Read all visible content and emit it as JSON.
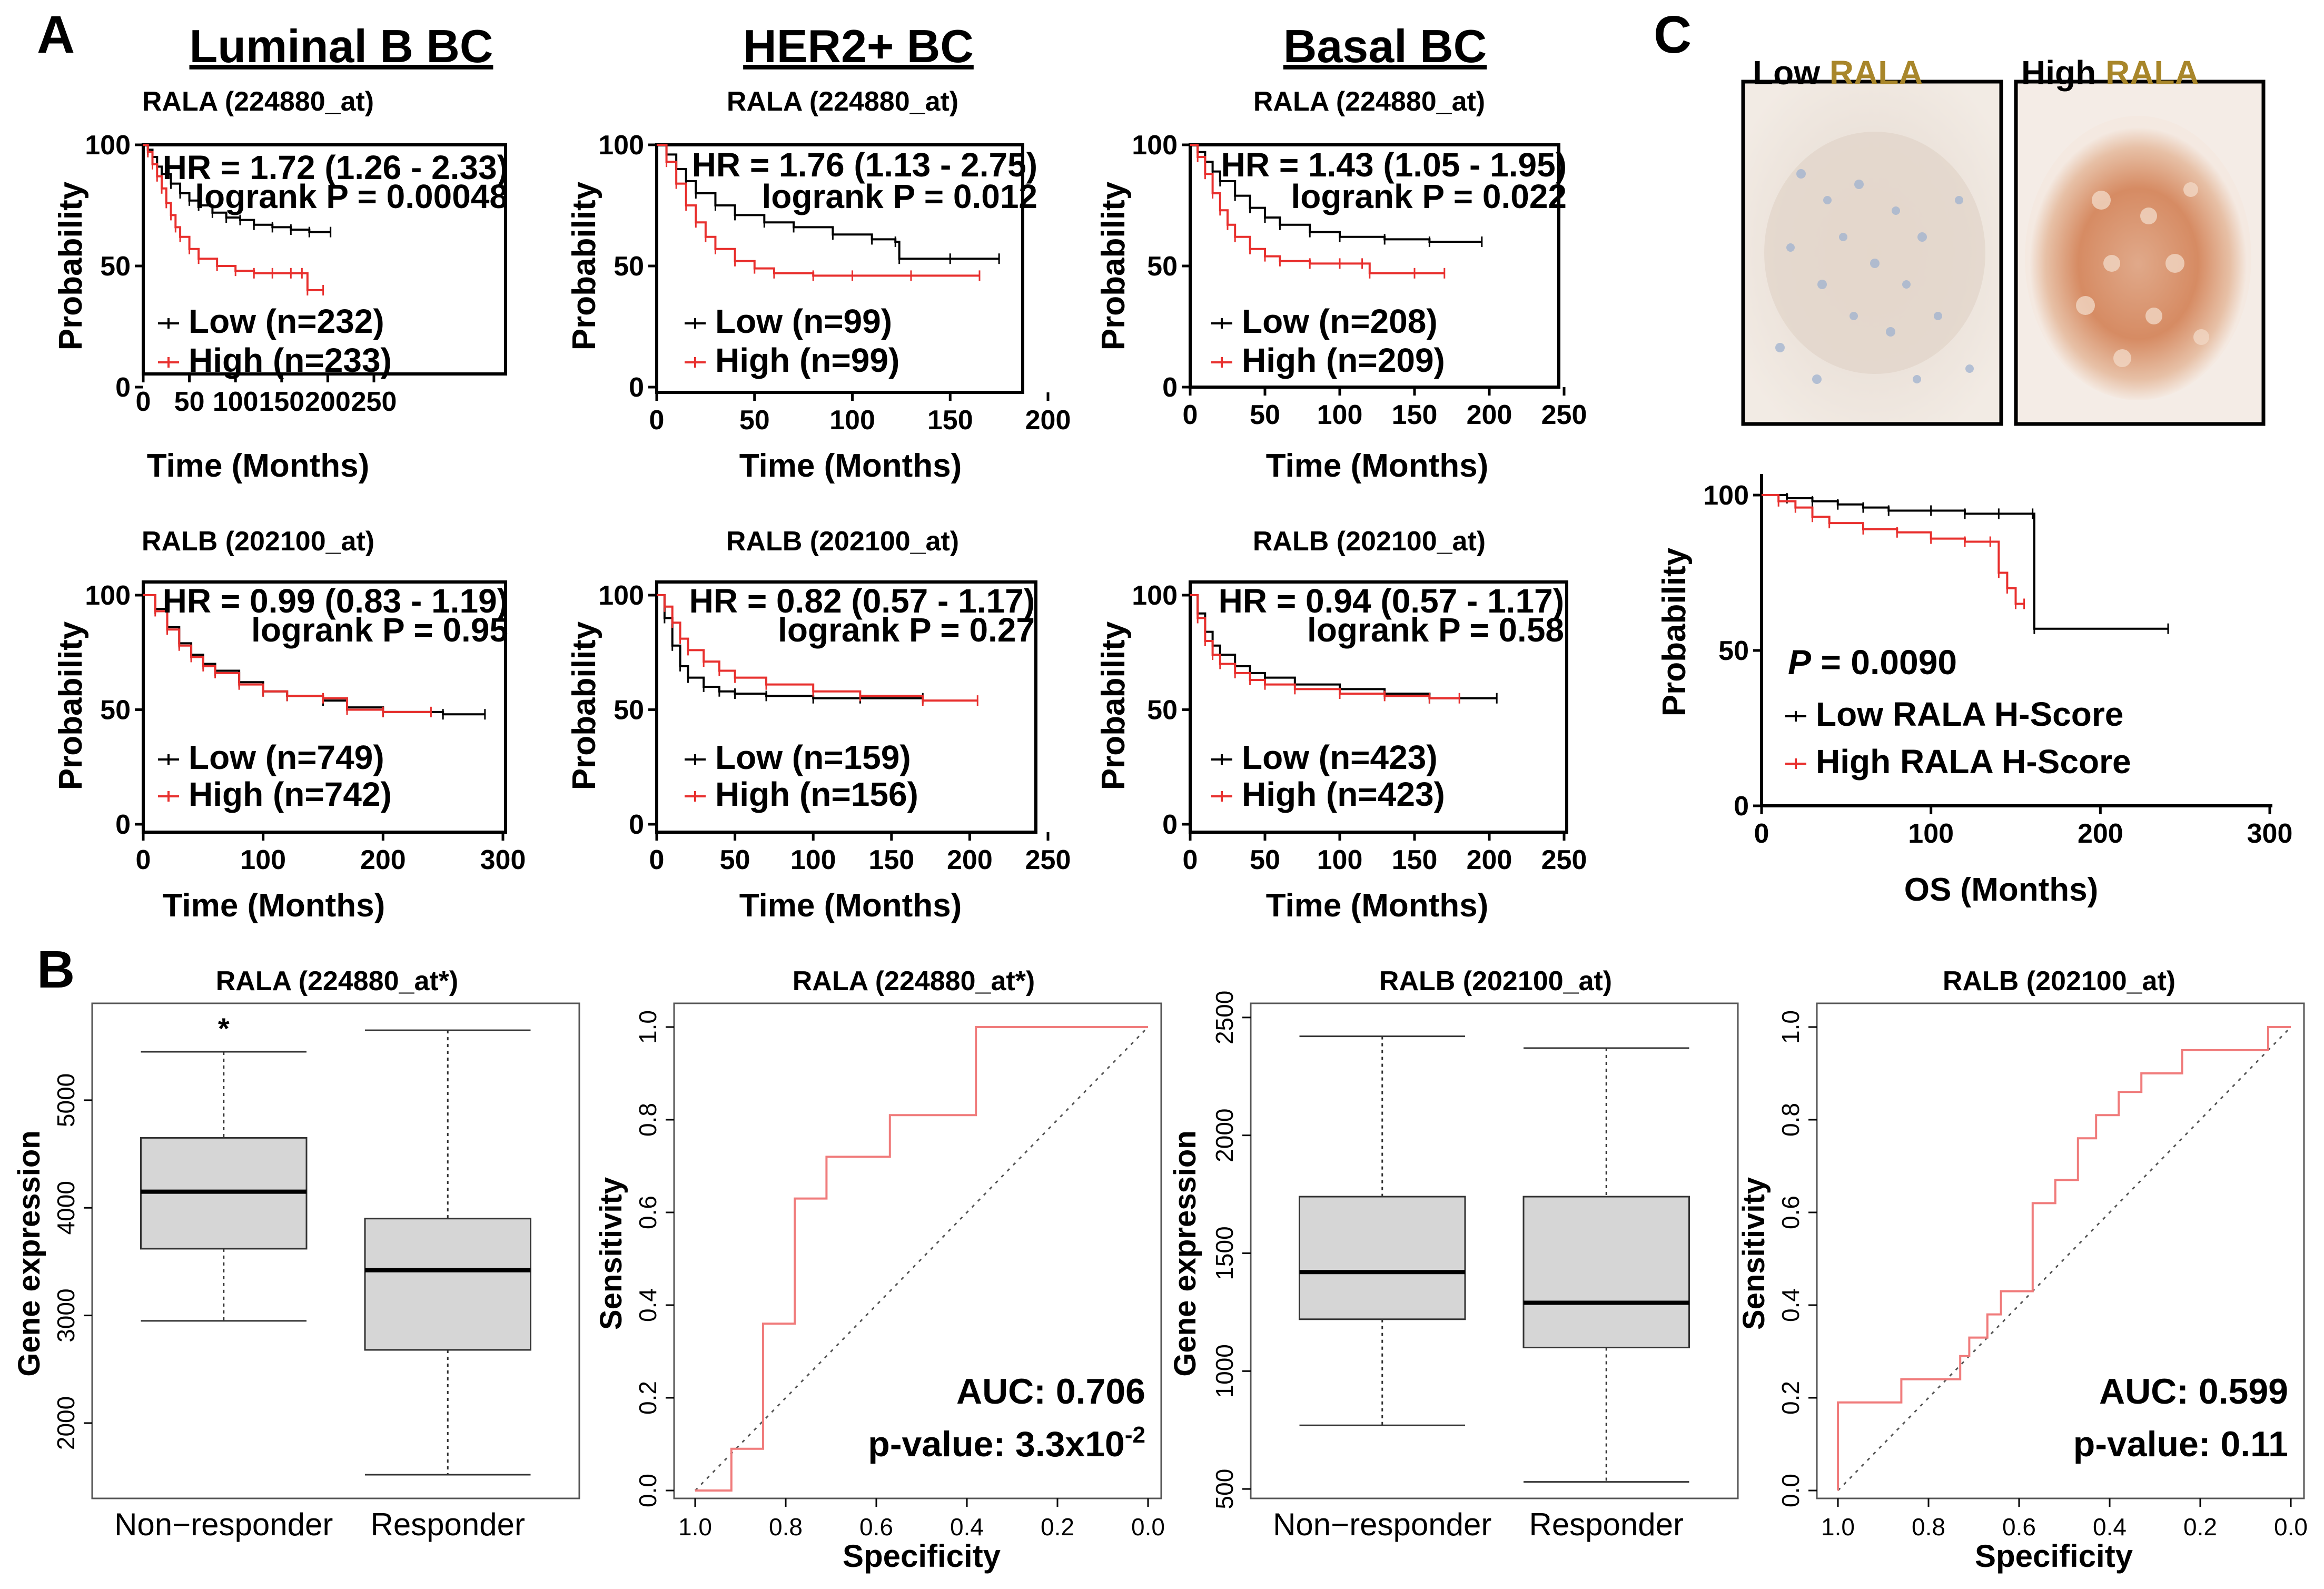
{
  "figure": {
    "panel_letters": {
      "A": "A",
      "B": "B",
      "C": "C"
    },
    "column_headers": [
      "Luminal B BC",
      "HER2+ BC",
      "Basal BC"
    ]
  },
  "colors": {
    "low": "#000000",
    "high": "#e8302e",
    "roc": "#f07c7c",
    "box_fill": "#d6d6d6"
  },
  "ihc": {
    "low_label": "Low",
    "high_label": "High",
    "gene_label": "RALA",
    "gene_color": "#a8862a"
  },
  "chart_data": [
    {
      "id": "km_A1",
      "type": "line",
      "title": "RALA (224880_at)",
      "xlabel": "Time (Months)",
      "ylabel": "Probability",
      "xlim": [
        0,
        250
      ],
      "ylim": [
        0,
        100
      ],
      "xticks": [
        0,
        50,
        100,
        150,
        200,
        250
      ],
      "yticks": [
        0,
        50,
        100
      ],
      "annotations": [
        "HR = 1.72 (1.26 - 2.33)",
        "logrank P = 0.00048"
      ],
      "series": [
        {
          "name": "Low (n=232)",
          "color": "#000000",
          "x": [
            0,
            5,
            10,
            15,
            20,
            30,
            40,
            50,
            60,
            75,
            90,
            105,
            120,
            140,
            160,
            180,
            203
          ],
          "y": [
            100,
            98,
            95,
            91,
            88,
            84,
            80,
            77,
            75,
            72,
            70,
            69,
            67,
            66,
            65,
            64,
            64
          ]
        },
        {
          "name": "High (n=233)",
          "color": "#e8302e",
          "x": [
            0,
            5,
            10,
            15,
            20,
            25,
            30,
            35,
            40,
            50,
            60,
            80,
            100,
            120,
            140,
            160,
            172,
            178,
            195
          ],
          "y": [
            100,
            97,
            92,
            87,
            82,
            76,
            71,
            66,
            62,
            57,
            53,
            50,
            48,
            47,
            47,
            47,
            47,
            40,
            40
          ]
        }
      ]
    },
    {
      "id": "km_A2",
      "type": "line",
      "title": "RALA (224880_at)",
      "xlabel": "Time (Months)",
      "ylabel": "Probability",
      "xlim": [
        0,
        200
      ],
      "ylim": [
        0,
        100
      ],
      "xticks": [
        0,
        50,
        100,
        150,
        200
      ],
      "yticks": [
        0,
        50,
        100
      ],
      "annotations": [
        "HR = 1.76 (1.13 - 2.75)",
        "logrank P = 0.012"
      ],
      "series": [
        {
          "name": "Low (n=99)",
          "color": "#000000",
          "x": [
            0,
            5,
            10,
            15,
            20,
            30,
            40,
            55,
            70,
            90,
            110,
            122,
            124,
            150,
            175
          ],
          "y": [
            100,
            96,
            90,
            85,
            80,
            75,
            71,
            68,
            66,
            63,
            61,
            60,
            53,
            53,
            53
          ]
        },
        {
          "name": "High (n=99)",
          "color": "#e8302e",
          "x": [
            0,
            5,
            10,
            15,
            20,
            25,
            30,
            40,
            50,
            60,
            80,
            100,
            130,
            165
          ],
          "y": [
            100,
            93,
            84,
            75,
            68,
            62,
            57,
            52,
            49,
            47,
            46,
            46,
            46,
            46
          ]
        }
      ]
    },
    {
      "id": "km_A3",
      "type": "line",
      "title": "RALA (224880_at)",
      "xlabel": "Time (Months)",
      "ylabel": "Probability",
      "xlim": [
        0,
        250
      ],
      "ylim": [
        0,
        100
      ],
      "xticks": [
        0,
        50,
        100,
        150,
        200,
        250
      ],
      "yticks": [
        0,
        50,
        100
      ],
      "annotations": [
        "HR = 1.43 (1.05 - 1.95)",
        "logrank P = 0.022"
      ],
      "series": [
        {
          "name": "Low (n=208)",
          "color": "#000000",
          "x": [
            0,
            5,
            10,
            15,
            20,
            30,
            40,
            50,
            60,
            80,
            100,
            130,
            160,
            195
          ],
          "y": [
            100,
            97,
            93,
            89,
            85,
            79,
            74,
            70,
            67,
            64,
            62,
            61,
            60,
            60
          ]
        },
        {
          "name": "High (n=209)",
          "color": "#e8302e",
          "x": [
            0,
            5,
            10,
            15,
            20,
            25,
            30,
            40,
            50,
            60,
            80,
            100,
            115,
            120,
            150,
            170
          ],
          "y": [
            100,
            95,
            88,
            80,
            73,
            67,
            62,
            57,
            54,
            52,
            51,
            51,
            51,
            47,
            47,
            47
          ]
        }
      ]
    },
    {
      "id": "km_A4",
      "type": "line",
      "title": "RALB (202100_at)",
      "xlabel": "Time (Months)",
      "ylabel": "Probability",
      "xlim": [
        0,
        300
      ],
      "ylim": [
        0,
        100
      ],
      "xticks": [
        0,
        100,
        200,
        300
      ],
      "yticks": [
        0,
        50,
        100
      ],
      "annotations": [
        "HR = 0.99 (0.83 - 1.19)",
        "logrank P = 0.95"
      ],
      "series": [
        {
          "name": "Low (n=749)",
          "color": "#000000",
          "x": [
            0,
            10,
            20,
            30,
            40,
            50,
            60,
            80,
            100,
            120,
            150,
            170,
            200,
            250,
            285
          ],
          "y": [
            100,
            94,
            86,
            79,
            74,
            70,
            67,
            62,
            58,
            56,
            54,
            51,
            49,
            48,
            48
          ]
        },
        {
          "name": "High (n=742)",
          "color": "#e8302e",
          "x": [
            0,
            10,
            20,
            30,
            40,
            50,
            60,
            80,
            100,
            120,
            150,
            170,
            200,
            240
          ],
          "y": [
            100,
            93,
            85,
            78,
            73,
            69,
            66,
            61,
            58,
            56,
            55,
            50,
            49,
            49
          ]
        }
      ]
    },
    {
      "id": "km_A5",
      "type": "line",
      "title": "RALB (202100_at)",
      "xlabel": "Time (Months)",
      "ylabel": "Probability",
      "xlim": [
        0,
        250
      ],
      "ylim": [
        0,
        100
      ],
      "xticks": [
        0,
        50,
        100,
        150,
        200,
        250
      ],
      "yticks": [
        0,
        50,
        100
      ],
      "annotations": [
        "HR = 0.82 (0.57 - 1.17)",
        "logrank P = 0.27"
      ],
      "series": [
        {
          "name": "Low (n=159)",
          "color": "#000000",
          "x": [
            0,
            5,
            10,
            15,
            20,
            30,
            40,
            50,
            70,
            100,
            130,
            170
          ],
          "y": [
            100,
            90,
            78,
            69,
            64,
            60,
            58,
            57,
            56,
            55,
            55,
            55
          ]
        },
        {
          "name": "High (n=156)",
          "color": "#e8302e",
          "x": [
            0,
            5,
            10,
            15,
            20,
            30,
            40,
            50,
            70,
            100,
            130,
            170,
            205
          ],
          "y": [
            100,
            95,
            88,
            81,
            76,
            71,
            67,
            64,
            61,
            58,
            56,
            54,
            54
          ]
        }
      ]
    },
    {
      "id": "km_A6",
      "type": "line",
      "title": "RALB (202100_at)",
      "xlabel": "Time (Months)",
      "ylabel": "Probability",
      "xlim": [
        0,
        250
      ],
      "ylim": [
        0,
        100
      ],
      "xticks": [
        0,
        50,
        100,
        150,
        200,
        250
      ],
      "yticks": [
        0,
        50,
        100
      ],
      "annotations": [
        "HR = 0.94 (0.57 - 1.17)",
        "logrank P = 0.58"
      ],
      "series": [
        {
          "name": "Low (n=423)",
          "color": "#000000",
          "x": [
            0,
            5,
            10,
            15,
            20,
            30,
            40,
            50,
            70,
            100,
            130,
            160,
            205
          ],
          "y": [
            100,
            92,
            84,
            78,
            74,
            69,
            66,
            64,
            61,
            59,
            57,
            55,
            55
          ]
        },
        {
          "name": "High (n=423)",
          "color": "#e8302e",
          "x": [
            0,
            5,
            10,
            15,
            20,
            30,
            40,
            50,
            70,
            100,
            130,
            160,
            180
          ],
          "y": [
            100,
            90,
            80,
            74,
            70,
            66,
            63,
            61,
            59,
            57,
            56,
            55,
            55
          ]
        }
      ]
    },
    {
      "id": "km_C",
      "type": "line",
      "title": "",
      "xlabel": "OS (Months)",
      "ylabel": "Probability",
      "xlim": [
        0,
        300
      ],
      "ylim": [
        0,
        100
      ],
      "xticks": [
        0,
        100,
        200,
        300
      ],
      "yticks": [
        0,
        50,
        100
      ],
      "annotations": [
        "P",
        " = 0.0090"
      ],
      "series": [
        {
          "name": "Low RALA H-Score",
          "color": "#000000",
          "x": [
            0,
            15,
            30,
            45,
            60,
            75,
            100,
            120,
            140,
            160,
            161,
            240
          ],
          "y": [
            100,
            99,
            98,
            97,
            96,
            95,
            95,
            94,
            94,
            94,
            57,
            57
          ]
        },
        {
          "name": "High RALA H-Score",
          "color": "#e8302e",
          "x": [
            0,
            10,
            20,
            30,
            40,
            60,
            80,
            100,
            120,
            135,
            140,
            145,
            150,
            155
          ],
          "y": [
            100,
            98,
            96,
            93,
            91,
            89,
            88,
            86,
            85,
            85,
            75,
            70,
            65,
            65
          ]
        }
      ]
    },
    {
      "id": "box_B1",
      "type": "box",
      "title": "RALA (224880_at*)",
      "ylabel": "Gene expression",
      "ylim": [
        1300,
        5900
      ],
      "yticks": [
        2000,
        3000,
        4000,
        5000
      ],
      "categories": [
        "Non−responder",
        "Responder"
      ],
      "boxes": [
        {
          "whisker_low": 2950,
          "q1": 3620,
          "median": 4150,
          "q3": 4650,
          "whisker_high": 5450
        },
        {
          "whisker_low": 1520,
          "q1": 2680,
          "median": 3420,
          "q3": 3900,
          "whisker_high": 5650
        }
      ],
      "markers": [
        "*"
      ]
    },
    {
      "id": "roc_B2",
      "type": "line",
      "title": "RALA (224880_at*)",
      "xlabel": "Specificity",
      "ylabel": "Sensitivity",
      "xlim": [
        1.0,
        0.0
      ],
      "ylim": [
        0,
        1.0
      ],
      "xticks": [
        1.0,
        0.8,
        0.6,
        0.4,
        0.2,
        0.0
      ],
      "yticks": [
        0.0,
        0.2,
        0.4,
        0.6,
        0.8,
        1.0
      ],
      "xtick_labels": [
        "1.0",
        "0.8",
        "0.6",
        "0.4",
        "0.2",
        "0.0"
      ],
      "ytick_labels": [
        "0.0",
        "0.2",
        "0.4",
        "0.6",
        "0.8",
        "1.0"
      ],
      "annotations": [
        "AUC: 0.706",
        "p-value: 3.3x10",
        "-2"
      ],
      "roc": {
        "specificity": [
          1.0,
          0.92,
          0.92,
          0.85,
          0.85,
          0.78,
          0.78,
          0.71,
          0.71,
          0.57,
          0.57,
          0.38,
          0.38,
          0.0
        ],
        "sensitivity": [
          0.0,
          0.0,
          0.09,
          0.09,
          0.36,
          0.36,
          0.63,
          0.63,
          0.72,
          0.72,
          0.81,
          0.81,
          1.0,
          1.0
        ]
      }
    },
    {
      "id": "box_B3",
      "type": "box",
      "title": "RALB (202100_at)",
      "ylabel": "Gene expression",
      "ylim": [
        460,
        2560
      ],
      "yticks": [
        500,
        1000,
        1500,
        2000,
        2500
      ],
      "categories": [
        "Non−responder",
        "Responder"
      ],
      "boxes": [
        {
          "whisker_low": 770,
          "q1": 1220,
          "median": 1420,
          "q3": 1740,
          "whisker_high": 2420
        },
        {
          "whisker_low": 530,
          "q1": 1100,
          "median": 1290,
          "q3": 1740,
          "whisker_high": 2370
        }
      ],
      "markers": []
    },
    {
      "id": "roc_B4",
      "type": "line",
      "title": "RALB (202100_at)",
      "xlabel": "Specificity",
      "ylabel": "Sensitivity",
      "xlim": [
        1.0,
        0.0
      ],
      "ylim": [
        0,
        1.0
      ],
      "xticks": [
        1.0,
        0.8,
        0.6,
        0.4,
        0.2,
        0.0
      ],
      "yticks": [
        0.0,
        0.2,
        0.4,
        0.6,
        0.8,
        1.0
      ],
      "xtick_labels": [
        "1.0",
        "0.8",
        "0.6",
        "0.4",
        "0.2",
        "0.0"
      ],
      "ytick_labels": [
        "0.0",
        "0.2",
        "0.4",
        "0.6",
        "0.8",
        "1.0"
      ],
      "annotations": [
        "AUC: 0.599",
        "p-value: 0.11"
      ],
      "roc": {
        "specificity": [
          1.0,
          1.0,
          0.86,
          0.86,
          0.73,
          0.73,
          0.71,
          0.71,
          0.67,
          0.67,
          0.64,
          0.64,
          0.57,
          0.57,
          0.52,
          0.52,
          0.47,
          0.47,
          0.43,
          0.43,
          0.38,
          0.38,
          0.33,
          0.33,
          0.24,
          0.24,
          0.05,
          0.05,
          0.0
        ],
        "sensitivity": [
          0.0,
          0.19,
          0.19,
          0.24,
          0.24,
          0.29,
          0.29,
          0.33,
          0.33,
          0.38,
          0.38,
          0.43,
          0.43,
          0.62,
          0.62,
          0.67,
          0.67,
          0.76,
          0.76,
          0.81,
          0.81,
          0.86,
          0.86,
          0.9,
          0.9,
          0.95,
          0.95,
          1.0,
          1.0
        ]
      }
    }
  ]
}
